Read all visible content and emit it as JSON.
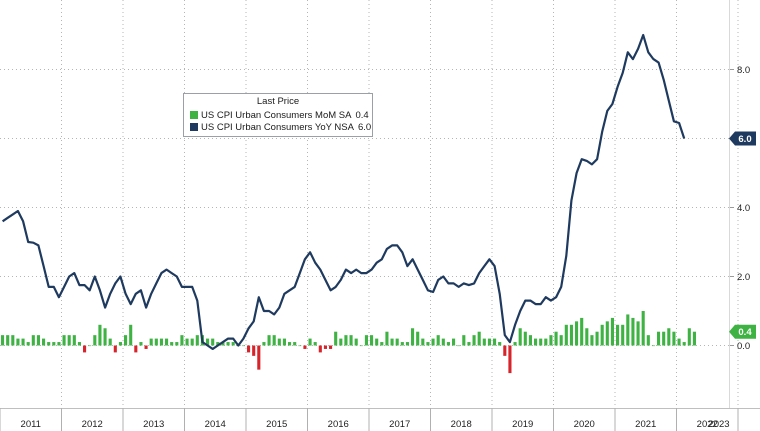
{
  "chart_data": {
    "type": "line+bar",
    "legend": {
      "title": "Last Price",
      "placement": "top-left",
      "entries": [
        {
          "label": "US CPI Urban Consumers MoM SA",
          "value": "0.4",
          "color": "#3fb244"
        },
        {
          "label": "US CPI Urban Consumers YoY NSA",
          "value": "6.0",
          "color": "#1f3a5f"
        }
      ]
    },
    "x_ticks": [
      "2011",
      "2012",
      "2013",
      "2014",
      "2015",
      "2016",
      "2017",
      "2018",
      "2019",
      "2020",
      "2021",
      "2022",
      "2023"
    ],
    "y_ticks": [
      "8.0",
      "6.0",
      "4.0",
      "2.0",
      "0.0"
    ],
    "ylim": [
      -1.6,
      9.8
    ],
    "grid": true,
    "end_labels": {
      "line": "6.0",
      "bars": "0.4"
    },
    "series": [
      {
        "name": "US CPI Urban Consumers YoY NSA",
        "kind": "line",
        "color": "#1f3a5f",
        "start": "2011-01",
        "values": [
          3.6,
          3.7,
          3.8,
          3.9,
          3.6,
          3.0,
          2.98,
          2.9,
          2.3,
          1.7,
          1.7,
          1.4,
          1.7,
          2.0,
          2.1,
          1.75,
          1.75,
          1.6,
          2.0,
          1.6,
          1.1,
          1.5,
          1.8,
          2.0,
          1.5,
          1.2,
          1.5,
          1.6,
          1.1,
          1.5,
          1.8,
          2.1,
          2.2,
          2.1,
          2.0,
          1.7,
          1.7,
          1.7,
          1.3,
          0.1,
          0.0,
          -0.1,
          0.0,
          0.1,
          0.2,
          0.2,
          0.0,
          0.2,
          0.5,
          0.7,
          1.4,
          1.0,
          1.0,
          0.9,
          1.1,
          1.5,
          1.6,
          1.7,
          2.1,
          2.5,
          2.7,
          2.4,
          2.2,
          1.9,
          1.6,
          1.7,
          1.9,
          2.2,
          2.1,
          2.2,
          2.1,
          2.1,
          2.2,
          2.4,
          2.5,
          2.8,
          2.9,
          2.9,
          2.7,
          2.3,
          2.5,
          2.2,
          1.9,
          1.6,
          1.55,
          1.9,
          2.0,
          1.8,
          1.8,
          1.7,
          1.8,
          1.75,
          1.8,
          2.1,
          2.3,
          2.5,
          2.3,
          1.5,
          0.3,
          0.1,
          0.6,
          1.0,
          1.3,
          1.3,
          1.2,
          1.2,
          1.4,
          1.3,
          1.4,
          1.7,
          2.6,
          4.2,
          5.0,
          5.4,
          5.35,
          5.25,
          5.4,
          6.2,
          6.8,
          7.0,
          7.5,
          7.9,
          8.5,
          8.3,
          8.6,
          9.0,
          8.5,
          8.3,
          8.2,
          7.7,
          7.1,
          6.5,
          6.45,
          6.0
        ]
      },
      {
        "name": "US CPI Urban Consumers MoM SA",
        "kind": "bar",
        "color_positive": "#3fb244",
        "color_negative": "#d7242b",
        "start": "2011-01",
        "values": [
          0.3,
          0.3,
          0.3,
          0.2,
          0.2,
          0.1,
          0.3,
          0.3,
          0.2,
          0.1,
          0.1,
          0.1,
          0.3,
          0.3,
          0.3,
          0.1,
          -0.2,
          0.0,
          0.3,
          0.6,
          0.5,
          0.2,
          -0.2,
          0.1,
          0.3,
          0.6,
          -0.2,
          0.1,
          -0.1,
          0.2,
          0.2,
          0.2,
          0.2,
          0.1,
          0.1,
          0.3,
          0.2,
          0.2,
          0.3,
          0.3,
          0.2,
          0.2,
          0.1,
          0.1,
          0.1,
          0.1,
          0.0,
          0.0,
          -0.2,
          -0.3,
          -0.7,
          0.1,
          0.3,
          0.3,
          0.2,
          0.2,
          0.1,
          0.1,
          0.0,
          -0.1,
          0.2,
          0.1,
          -0.2,
          -0.1,
          -0.1,
          0.4,
          0.2,
          0.3,
          0.3,
          0.2,
          0.0,
          0.3,
          0.3,
          0.2,
          0.1,
          0.4,
          0.2,
          0.2,
          0.1,
          0.1,
          0.5,
          0.4,
          0.2,
          0.1,
          0.2,
          0.3,
          0.2,
          0.1,
          0.2,
          0.0,
          0.3,
          0.1,
          0.3,
          0.4,
          0.2,
          0.2,
          0.2,
          0.1,
          -0.3,
          -0.8,
          0.1,
          0.5,
          0.4,
          0.3,
          0.2,
          0.2,
          0.2,
          0.3,
          0.4,
          0.3,
          0.6,
          0.6,
          0.7,
          0.8,
          0.5,
          0.3,
          0.4,
          0.6,
          0.7,
          0.8,
          0.6,
          0.6,
          0.9,
          0.8,
          0.7,
          1.0,
          0.3,
          0.0,
          0.4,
          0.4,
          0.5,
          0.4,
          0.2,
          0.1,
          0.5,
          0.4
        ]
      }
    ]
  }
}
